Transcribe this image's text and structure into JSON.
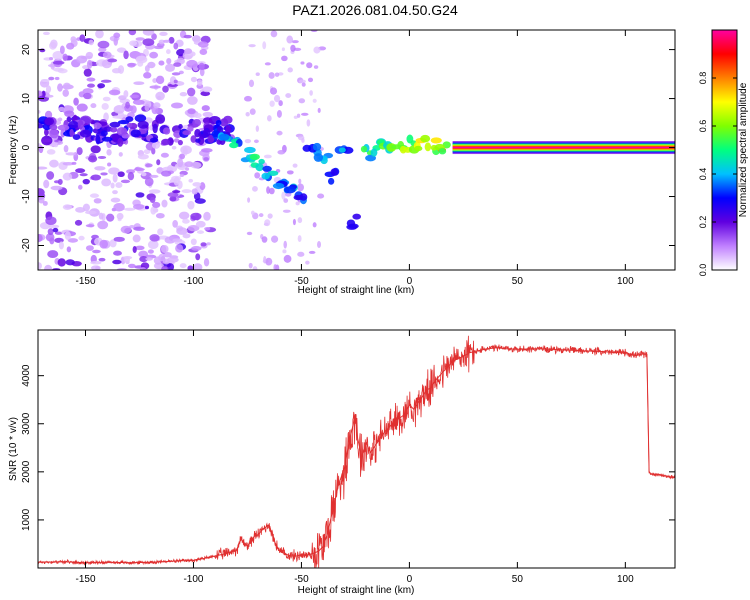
{
  "title": "PAZ1.2026.081.04.50.G24",
  "colors": {
    "snr_line": "#e03030",
    "axis": "#000000",
    "background": "#ffffff",
    "blob": "#6a00e8"
  },
  "chart_data": [
    {
      "type": "heatmap",
      "name": "spectrogram",
      "xlabel": "Height of straight line (km)",
      "ylabel": "Frequency (Hz)",
      "xlim": [
        -172,
        123
      ],
      "ylim": [
        -25,
        24
      ],
      "xticks": [
        -150,
        -100,
        -50,
        0,
        50,
        100
      ],
      "yticks": [
        -20,
        -10,
        0,
        10,
        20
      ],
      "xtick_labels": [
        "-150",
        "-100",
        "-50",
        "0",
        "50",
        "100"
      ],
      "ytick_labels": [
        "-20",
        "-10",
        "0",
        "10",
        "20"
      ],
      "colorbar": {
        "label": "Normalized spectral amplitude",
        "range": [
          0,
          1
        ],
        "ticks": [
          0.0,
          0.2,
          0.4,
          0.6,
          0.8
        ],
        "tick_labels": [
          "0.0",
          "0.2",
          "0.4",
          "0.6",
          "0.8"
        ],
        "colormap": [
          "#ffffff",
          "#c080ff",
          "#6000e0",
          "#0000ff",
          "#00c0ff",
          "#00ff80",
          "#80ff00",
          "#ffff00",
          "#ff8000",
          "#ff0000",
          "#ff00a0"
        ]
      },
      "main_line": {
        "description": "strong tone at 0 Hz",
        "x_start": 20,
        "x_end": 123,
        "frequency": 0
      },
      "trace": [
        {
          "x": -90,
          "y": 3.5,
          "a": 0.35
        },
        {
          "x": -85,
          "y": 2.0,
          "a": 0.45
        },
        {
          "x": -80,
          "y": 0.5,
          "a": 0.45
        },
        {
          "x": -75,
          "y": -1.5,
          "a": 0.45
        },
        {
          "x": -70,
          "y": -3.0,
          "a": 0.5
        },
        {
          "x": -65,
          "y": -5.5,
          "a": 0.45
        },
        {
          "x": -60,
          "y": -7.5,
          "a": 0.4
        },
        {
          "x": -55,
          "y": -9.0,
          "a": 0.4
        },
        {
          "x": -50,
          "y": -10.5,
          "a": 0.35
        },
        {
          "x": -45,
          "y": -1.0,
          "a": 0.35
        },
        {
          "x": -40,
          "y": -1.5,
          "a": 0.4
        },
        {
          "x": -35,
          "y": -6.0,
          "a": 0.3
        },
        {
          "x": -30,
          "y": -1.0,
          "a": 0.4
        },
        {
          "x": -25,
          "y": -15.0,
          "a": 0.25
        },
        {
          "x": -20,
          "y": -1.0,
          "a": 0.5
        },
        {
          "x": -15,
          "y": 0.0,
          "a": 0.6
        },
        {
          "x": -10,
          "y": 0.0,
          "a": 0.6
        },
        {
          "x": -5,
          "y": 0.0,
          "a": 0.65
        },
        {
          "x": 0,
          "y": 0.5,
          "a": 0.7
        },
        {
          "x": 5,
          "y": 1.0,
          "a": 0.7
        },
        {
          "x": 10,
          "y": 0.5,
          "a": 0.7
        },
        {
          "x": 15,
          "y": 0.0,
          "a": 0.75
        }
      ]
    },
    {
      "type": "line",
      "name": "snr",
      "xlabel": "Height of straight line (km)",
      "ylabel": "SNR (10 * v/v)",
      "xlim": [
        -172,
        123
      ],
      "ylim": [
        0,
        4950
      ],
      "xticks": [
        -150,
        -100,
        -50,
        0,
        50,
        100
      ],
      "yticks": [
        1000,
        2000,
        3000,
        4000
      ],
      "xtick_labels": [
        "-150",
        "-100",
        "-50",
        "0",
        "50",
        "100"
      ],
      "ytick_labels": [
        "1000",
        "2000",
        "3000",
        "4000"
      ],
      "x": [
        -172,
        -160,
        -150,
        -140,
        -130,
        -120,
        -110,
        -100,
        -95,
        -90,
        -85,
        -80,
        -78,
        -75,
        -72,
        -70,
        -68,
        -65,
        -62,
        -60,
        -58,
        -55,
        -52,
        -50,
        -48,
        -45,
        -42,
        -40,
        -38,
        -35,
        -33,
        -30,
        -28,
        -26,
        -25,
        -24,
        -22,
        -20,
        -18,
        -15,
        -12,
        -10,
        -8,
        -5,
        -2,
        0,
        2,
        5,
        8,
        10,
        12,
        15,
        18,
        20,
        22,
        25,
        28,
        30,
        35,
        40,
        45,
        50,
        60,
        70,
        80,
        90,
        95,
        100,
        102,
        105,
        108,
        110,
        111,
        112,
        115,
        120,
        123
      ],
      "y": [
        120,
        130,
        110,
        120,
        110,
        120,
        140,
        160,
        200,
        250,
        300,
        380,
        600,
        450,
        650,
        700,
        800,
        900,
        500,
        350,
        300,
        250,
        250,
        280,
        260,
        300,
        350,
        450,
        700,
        1300,
        1700,
        2100,
        2600,
        3000,
        3200,
        2700,
        2300,
        2600,
        2400,
        2600,
        2800,
        2900,
        3000,
        3100,
        3200,
        3400,
        3300,
        3500,
        3700,
        3750,
        3900,
        4050,
        4200,
        4300,
        4350,
        4400,
        4480,
        4500,
        4550,
        4580,
        4560,
        4550,
        4560,
        4540,
        4520,
        4500,
        4480,
        4490,
        4450,
        4420,
        4450,
        4440,
        2000,
        1950,
        1950,
        1900,
        1880
      ]
    }
  ]
}
